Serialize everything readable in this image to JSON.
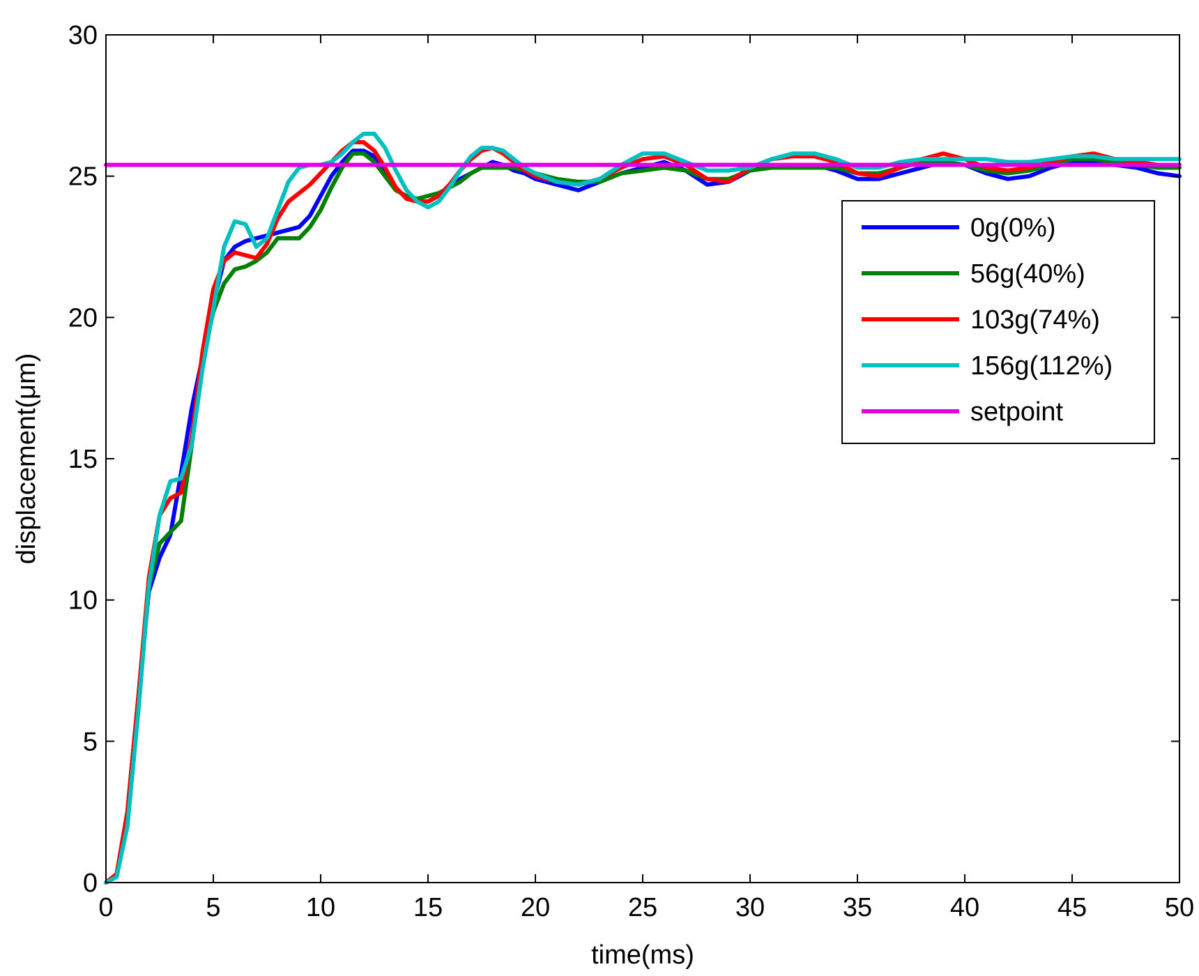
{
  "chart_data": {
    "type": "line",
    "xlabel": "time(ms)",
    "ylabel": "displacement(μm)",
    "xlim": [
      0,
      50
    ],
    "ylim": [
      0,
      30
    ],
    "xticks": [
      0,
      5,
      10,
      15,
      20,
      25,
      30,
      35,
      40,
      45,
      50
    ],
    "yticks": [
      0,
      5,
      10,
      15,
      20,
      25,
      30
    ],
    "grid": false,
    "legend_position": "upper-right",
    "series": [
      {
        "name": "0g(0%)",
        "color": "#0000ff",
        "x": [
          0,
          0.5,
          1,
          1.5,
          2,
          2.5,
          3,
          3.5,
          4,
          4.5,
          5,
          5.5,
          6,
          6.5,
          7,
          7.5,
          8,
          8.5,
          9,
          9.5,
          10,
          10.5,
          11,
          11.5,
          12,
          12.5,
          13,
          13.5,
          14,
          14.5,
          15,
          15.5,
          16,
          16.5,
          17,
          17.5,
          18,
          18.5,
          19,
          19.5,
          20,
          21,
          22,
          23,
          24,
          25,
          26,
          27,
          28,
          29,
          30,
          31,
          32,
          33,
          34,
          35,
          36,
          37,
          38,
          39,
          40,
          41,
          42,
          43,
          44,
          45,
          46,
          47,
          48,
          49,
          50
        ],
        "y": [
          0,
          0.3,
          2.5,
          6.5,
          10.3,
          11.5,
          12.3,
          14.5,
          16.8,
          18.6,
          20.5,
          22,
          22.5,
          22.7,
          22.8,
          22.9,
          23,
          23.1,
          23.2,
          23.6,
          24.3,
          25,
          25.5,
          25.9,
          25.9,
          25.7,
          25.2,
          24.6,
          24.2,
          24.1,
          24.1,
          24.3,
          24.6,
          24.9,
          25.1,
          25.3,
          25.5,
          25.4,
          25.2,
          25.1,
          24.9,
          24.7,
          24.5,
          24.8,
          25.1,
          25.3,
          25.5,
          25.2,
          24.7,
          24.8,
          25.2,
          25.4,
          25.4,
          25.4,
          25.2,
          24.9,
          24.9,
          25.1,
          25.3,
          25.5,
          25.4,
          25.1,
          24.9,
          25.0,
          25.3,
          25.5,
          25.5,
          25.4,
          25.3,
          25.1,
          25.0
        ]
      },
      {
        "name": "56g(40%)",
        "color": "#007f00",
        "x": [
          0,
          0.5,
          1,
          1.5,
          2,
          2.5,
          3,
          3.5,
          4,
          4.5,
          5,
          5.5,
          6,
          6.5,
          7,
          7.5,
          8,
          8.5,
          9,
          9.5,
          10,
          10.5,
          11,
          11.5,
          12,
          12.5,
          13,
          13.5,
          14,
          14.5,
          15,
          15.5,
          16,
          16.5,
          17,
          17.5,
          18,
          18.5,
          19,
          19.5,
          20,
          21,
          22,
          23,
          24,
          25,
          26,
          27,
          28,
          29,
          30,
          31,
          32,
          33,
          34,
          35,
          36,
          37,
          38,
          39,
          40,
          41,
          42,
          43,
          44,
          45,
          46,
          47,
          48,
          49,
          50
        ],
        "y": [
          0,
          0.3,
          2.5,
          6.5,
          10.5,
          12,
          12.4,
          12.8,
          15.5,
          18.5,
          20.2,
          21.2,
          21.7,
          21.8,
          22,
          22.3,
          22.8,
          22.8,
          22.8,
          23.2,
          23.8,
          24.6,
          25.3,
          25.8,
          25.8,
          25.5,
          25.0,
          24.5,
          24.3,
          24.2,
          24.3,
          24.4,
          24.6,
          24.8,
          25.1,
          25.3,
          25.3,
          25.3,
          25.3,
          25.2,
          25.1,
          24.9,
          24.8,
          24.8,
          25.1,
          25.2,
          25.3,
          25.2,
          24.9,
          24.9,
          25.2,
          25.3,
          25.3,
          25.3,
          25.3,
          25.1,
          25.1,
          25.3,
          25.5,
          25.5,
          25.4,
          25.2,
          25.1,
          25.2,
          25.4,
          25.6,
          25.6,
          25.5,
          25.4,
          25.3,
          25.3
        ]
      },
      {
        "name": "103g(74%)",
        "color": "#ff0000",
        "x": [
          0,
          0.5,
          1,
          1.5,
          2,
          2.5,
          3,
          3.5,
          4,
          4.5,
          5,
          5.5,
          6,
          6.5,
          7,
          7.5,
          8,
          8.5,
          9,
          9.5,
          10,
          10.5,
          11,
          11.5,
          12,
          12.5,
          13,
          13.5,
          14,
          14.5,
          15,
          15.5,
          16,
          16.5,
          17,
          17.5,
          18,
          18.5,
          19,
          19.5,
          20,
          21,
          22,
          23,
          24,
          25,
          26,
          27,
          28,
          29,
          30,
          31,
          32,
          33,
          34,
          35,
          36,
          37,
          38,
          39,
          40,
          41,
          42,
          43,
          44,
          45,
          46,
          47,
          48,
          49,
          50
        ],
        "y": [
          0,
          0.3,
          2.5,
          6.5,
          10.8,
          13,
          13.6,
          13.8,
          15.8,
          18.8,
          21,
          22,
          22.3,
          22.2,
          22.1,
          22.6,
          23.5,
          24.1,
          24.4,
          24.7,
          25.1,
          25.5,
          25.9,
          26.2,
          26.2,
          25.9,
          25.3,
          24.6,
          24.2,
          24.1,
          24.1,
          24.3,
          24.7,
          25.2,
          25.6,
          25.9,
          26.0,
          25.8,
          25.5,
          25.2,
          25.0,
          24.8,
          24.7,
          24.9,
          25.3,
          25.6,
          25.7,
          25.4,
          24.9,
          24.8,
          25.3,
          25.6,
          25.7,
          25.7,
          25.5,
          25.1,
          25.0,
          25.3,
          25.6,
          25.8,
          25.6,
          25.3,
          25.2,
          25.3,
          25.5,
          25.7,
          25.8,
          25.6,
          25.5,
          25.4,
          25.4
        ]
      },
      {
        "name": "156g(112%)",
        "color": "#00bfbf",
        "x": [
          0,
          0.5,
          1,
          1.5,
          2,
          2.5,
          3,
          3.5,
          4,
          4.5,
          5,
          5.5,
          6,
          6.5,
          7,
          7.5,
          8,
          8.5,
          9,
          9.5,
          10,
          10.5,
          11,
          11.5,
          12,
          12.5,
          13,
          13.5,
          14,
          14.5,
          15,
          15.5,
          16,
          16.5,
          17,
          17.5,
          18,
          18.5,
          19,
          19.5,
          20,
          21,
          22,
          23,
          24,
          25,
          26,
          27,
          28,
          29,
          30,
          31,
          32,
          33,
          34,
          35,
          36,
          37,
          38,
          39,
          40,
          41,
          42,
          43,
          44,
          45,
          46,
          47,
          48,
          49,
          50
        ],
        "y": [
          0,
          0.2,
          2.0,
          6.0,
          10.5,
          13.0,
          14.2,
          14.3,
          15.5,
          18.2,
          20.3,
          22.5,
          23.4,
          23.3,
          22.5,
          22.8,
          23.8,
          24.8,
          25.3,
          25.4,
          25.4,
          25.5,
          25.8,
          26.2,
          26.5,
          26.5,
          26.0,
          25.2,
          24.5,
          24.1,
          23.9,
          24.1,
          24.6,
          25.2,
          25.7,
          26.0,
          26.0,
          25.9,
          25.6,
          25.3,
          25.1,
          24.8,
          24.7,
          24.9,
          25.4,
          25.8,
          25.8,
          25.5,
          25.2,
          25.2,
          25.3,
          25.6,
          25.8,
          25.8,
          25.6,
          25.3,
          25.3,
          25.5,
          25.6,
          25.6,
          25.6,
          25.6,
          25.5,
          25.5,
          25.6,
          25.7,
          25.7,
          25.6,
          25.6,
          25.6,
          25.6
        ]
      },
      {
        "name": "setpoint",
        "color": "#e000e0",
        "x": [
          0,
          50
        ],
        "y": [
          25.4,
          25.4
        ]
      }
    ]
  }
}
